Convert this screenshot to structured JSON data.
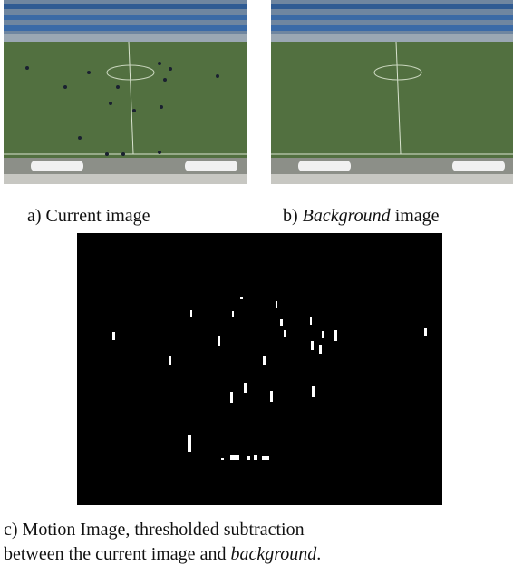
{
  "figure": {
    "caption_a": "a) Current image",
    "caption_b": {
      "label": "b)",
      "emph": "Background",
      "rest": "image"
    },
    "caption_c": {
      "line1": "c) Motion Image, thresholded subtraction",
      "line2_text": "between the current image and",
      "line2_emph": "background",
      "line2_end": "."
    }
  }
}
